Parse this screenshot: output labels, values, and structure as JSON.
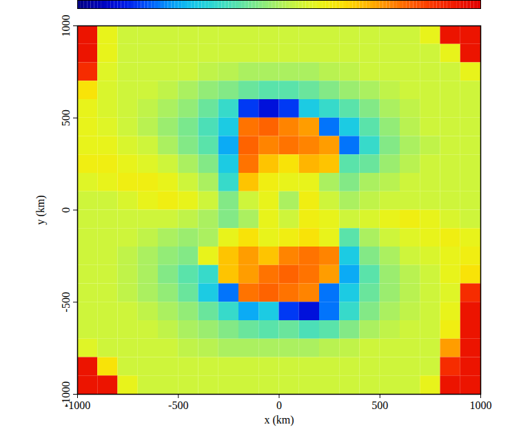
{
  "chart_data": {
    "type": "heatmap",
    "xlabel": "x (km)",
    "ylabel": "y (km)",
    "xlim": [
      -1000,
      1000
    ],
    "ylim": [
      -1000,
      1000
    ],
    "xticks": [
      -1000,
      -500,
      0,
      500,
      1000
    ],
    "yticks": [
      -1000,
      -500,
      0,
      500,
      1000
    ],
    "x": [
      -950,
      -850,
      -750,
      -650,
      -550,
      -450,
      -350,
      -250,
      -150,
      -50,
      50,
      150,
      250,
      350,
      450,
      550,
      650,
      750,
      850,
      950
    ],
    "y": [
      950,
      850,
      750,
      650,
      550,
      450,
      350,
      250,
      150,
      50,
      -50,
      -150,
      -250,
      -350,
      -450,
      -550,
      -650,
      -750,
      -850,
      -950
    ],
    "colorbar_range": [
      0,
      1
    ],
    "values": [
      [
        0.95,
        0.6,
        0.55,
        0.55,
        0.55,
        0.55,
        0.55,
        0.55,
        0.55,
        0.55,
        0.55,
        0.55,
        0.55,
        0.55,
        0.55,
        0.55,
        0.55,
        0.6,
        0.95,
        0.95
      ],
      [
        0.95,
        0.6,
        0.55,
        0.55,
        0.55,
        0.55,
        0.55,
        0.55,
        0.55,
        0.55,
        0.55,
        0.55,
        0.55,
        0.55,
        0.55,
        0.55,
        0.55,
        0.55,
        0.6,
        0.95
      ],
      [
        0.9,
        0.58,
        0.55,
        0.55,
        0.55,
        0.55,
        0.53,
        0.52,
        0.5,
        0.5,
        0.5,
        0.5,
        0.52,
        0.53,
        0.55,
        0.55,
        0.55,
        0.55,
        0.55,
        0.6
      ],
      [
        0.65,
        0.57,
        0.55,
        0.55,
        0.53,
        0.5,
        0.47,
        0.45,
        0.42,
        0.4,
        0.4,
        0.42,
        0.45,
        0.48,
        0.5,
        0.53,
        0.55,
        0.55,
        0.55,
        0.55
      ],
      [
        0.6,
        0.57,
        0.55,
        0.53,
        0.5,
        0.47,
        0.42,
        0.35,
        0.15,
        0.1,
        0.15,
        0.3,
        0.35,
        0.4,
        0.45,
        0.5,
        0.53,
        0.55,
        0.55,
        0.55
      ],
      [
        0.6,
        0.58,
        0.55,
        0.52,
        0.48,
        0.44,
        0.38,
        0.3,
        0.8,
        0.82,
        0.78,
        0.75,
        0.2,
        0.3,
        0.4,
        0.47,
        0.52,
        0.55,
        0.55,
        0.55
      ],
      [
        0.6,
        0.6,
        0.57,
        0.55,
        0.5,
        0.45,
        0.4,
        0.25,
        0.82,
        0.78,
        0.8,
        0.78,
        0.75,
        0.2,
        0.35,
        0.45,
        0.5,
        0.53,
        0.55,
        0.55
      ],
      [
        0.62,
        0.62,
        0.6,
        0.58,
        0.55,
        0.5,
        0.45,
        0.3,
        0.8,
        0.7,
        0.65,
        0.72,
        0.7,
        0.4,
        0.42,
        0.48,
        0.52,
        0.55,
        0.55,
        0.55
      ],
      [
        0.58,
        0.6,
        0.62,
        0.62,
        0.6,
        0.55,
        0.5,
        0.35,
        0.7,
        0.62,
        0.6,
        0.6,
        0.5,
        0.45,
        0.5,
        0.52,
        0.55,
        0.55,
        0.55,
        0.55
      ],
      [
        0.55,
        0.55,
        0.57,
        0.6,
        0.62,
        0.6,
        0.55,
        0.45,
        0.55,
        0.6,
        0.5,
        0.62,
        0.55,
        0.5,
        0.53,
        0.55,
        0.55,
        0.55,
        0.55,
        0.55
      ],
      [
        0.55,
        0.55,
        0.55,
        0.55,
        0.55,
        0.53,
        0.5,
        0.45,
        0.5,
        0.6,
        0.55,
        0.62,
        0.6,
        0.55,
        0.57,
        0.6,
        0.62,
        0.6,
        0.57,
        0.55
      ],
      [
        0.55,
        0.55,
        0.55,
        0.53,
        0.5,
        0.48,
        0.5,
        0.6,
        0.65,
        0.6,
        0.62,
        0.65,
        0.6,
        0.4,
        0.5,
        0.55,
        0.58,
        0.6,
        0.62,
        0.6
      ],
      [
        0.55,
        0.55,
        0.53,
        0.5,
        0.47,
        0.45,
        0.6,
        0.7,
        0.75,
        0.7,
        0.78,
        0.8,
        0.78,
        0.3,
        0.45,
        0.5,
        0.55,
        0.57,
        0.6,
        0.62
      ],
      [
        0.55,
        0.55,
        0.53,
        0.5,
        0.45,
        0.4,
        0.35,
        0.7,
        0.75,
        0.8,
        0.82,
        0.8,
        0.75,
        0.25,
        0.4,
        0.48,
        0.52,
        0.55,
        0.6,
        0.65
      ],
      [
        0.55,
        0.55,
        0.53,
        0.5,
        0.47,
        0.42,
        0.3,
        0.2,
        0.8,
        0.82,
        0.8,
        0.78,
        0.2,
        0.3,
        0.42,
        0.48,
        0.52,
        0.55,
        0.58,
        0.9
      ],
      [
        0.55,
        0.55,
        0.55,
        0.53,
        0.5,
        0.47,
        0.42,
        0.35,
        0.25,
        0.3,
        0.15,
        0.1,
        0.2,
        0.35,
        0.45,
        0.5,
        0.53,
        0.55,
        0.6,
        0.95
      ],
      [
        0.55,
        0.55,
        0.55,
        0.55,
        0.53,
        0.5,
        0.48,
        0.45,
        0.42,
        0.4,
        0.42,
        0.38,
        0.4,
        0.45,
        0.5,
        0.53,
        0.55,
        0.55,
        0.62,
        0.95
      ],
      [
        0.58,
        0.55,
        0.55,
        0.55,
        0.55,
        0.53,
        0.52,
        0.5,
        0.5,
        0.5,
        0.5,
        0.5,
        0.52,
        0.53,
        0.55,
        0.55,
        0.55,
        0.55,
        0.75,
        0.95
      ],
      [
        0.95,
        0.65,
        0.55,
        0.55,
        0.55,
        0.55,
        0.55,
        0.55,
        0.55,
        0.55,
        0.55,
        0.55,
        0.55,
        0.55,
        0.55,
        0.55,
        0.55,
        0.55,
        0.9,
        0.95
      ],
      [
        0.95,
        0.95,
        0.6,
        0.55,
        0.55,
        0.55,
        0.55,
        0.55,
        0.55,
        0.55,
        0.55,
        0.55,
        0.55,
        0.55,
        0.55,
        0.55,
        0.55,
        0.6,
        0.95,
        0.95
      ]
    ]
  }
}
